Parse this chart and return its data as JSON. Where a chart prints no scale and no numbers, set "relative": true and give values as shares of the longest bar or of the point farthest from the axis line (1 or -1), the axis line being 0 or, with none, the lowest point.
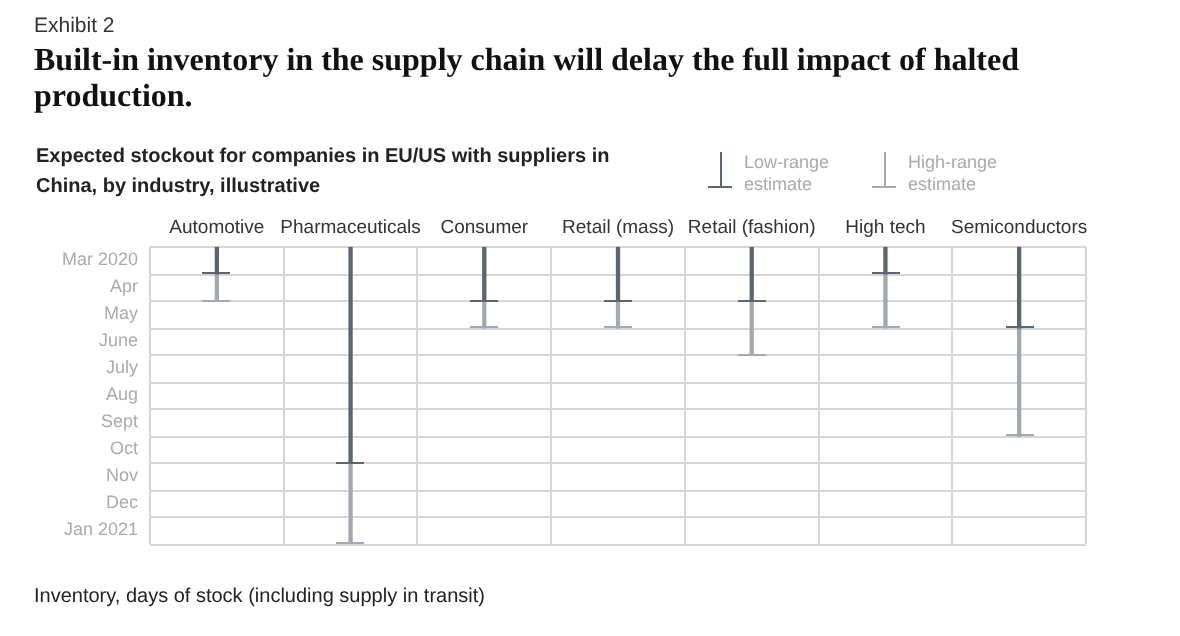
{
  "chart_data": {
    "type": "bar",
    "title": "Built-in inventory in the supply chain will delay the full impact of halted production.",
    "subtitle": "Expected stockout for companies in EU/US with suppliers in China, by industry, illustrative",
    "annotations": [
      "Exhibit 2",
      "Mar 2020",
      "Apr",
      "May",
      "June",
      "July",
      "Aug",
      "Sept",
      "Oct",
      "Nov",
      "Dec",
      "Jan 2021",
      "Inventory, days of stock (including supply in transit)"
    ],
    "categories": [
      "Automotive",
      "Pharmaceuticals",
      "Consumer",
      "Retail (mass)",
      "Retail (fashion)",
      "High tech",
      "Semiconductors"
    ],
    "stacked": true,
    "relative": true,
    "series": [
      {
        "name": "Low-range estimate",
        "color": "#5b6670",
        "values": [
          -0.091,
          -0.727,
          -0.182,
          -0.182,
          -0.182,
          -0.091,
          -0.273
        ]
      },
      {
        "name": "High-range estimate",
        "color": "#a3a9b0",
        "values": [
          -0.091,
          -0.273,
          -0.091,
          -0.091,
          -0.182,
          -0.182,
          -0.364
        ]
      }
    ],
    "grid": true,
    "legend": "top right"
  }
}
